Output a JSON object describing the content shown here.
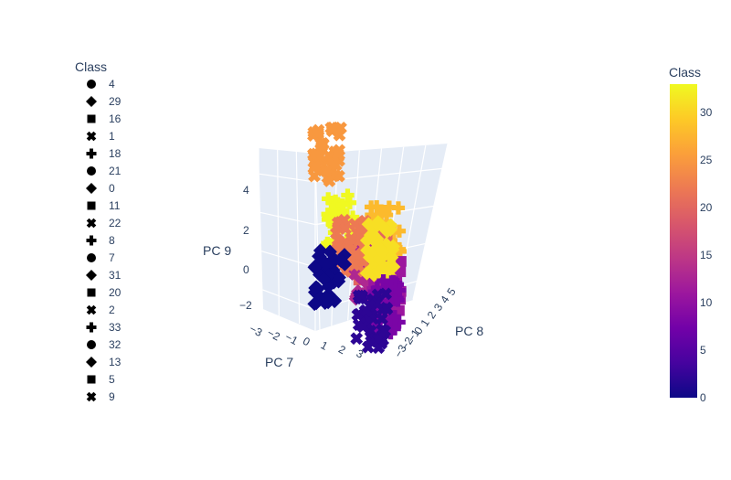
{
  "chart_data": {
    "type": "scatter",
    "projection": "3d",
    "legend": {
      "title": "Class",
      "placement": "top-left",
      "items": [
        {
          "label": "4",
          "symbol": "circle"
        },
        {
          "label": "29",
          "symbol": "diamond"
        },
        {
          "label": "16",
          "symbol": "square"
        },
        {
          "label": "1",
          "symbol": "x"
        },
        {
          "label": "18",
          "symbol": "cross"
        },
        {
          "label": "21",
          "symbol": "circle"
        },
        {
          "label": "0",
          "symbol": "diamond"
        },
        {
          "label": "11",
          "symbol": "square"
        },
        {
          "label": "22",
          "symbol": "x"
        },
        {
          "label": "8",
          "symbol": "cross"
        },
        {
          "label": "7",
          "symbol": "circle"
        },
        {
          "label": "31",
          "symbol": "diamond"
        },
        {
          "label": "20",
          "symbol": "square"
        },
        {
          "label": "2",
          "symbol": "x"
        },
        {
          "label": "33",
          "symbol": "cross"
        },
        {
          "label": "32",
          "symbol": "circle"
        },
        {
          "label": "13",
          "symbol": "diamond"
        },
        {
          "label": "5",
          "symbol": "square"
        },
        {
          "label": "9",
          "symbol": "x"
        }
      ]
    },
    "colorbar": {
      "title": "Class",
      "range": [
        0,
        33
      ],
      "ticks": [
        "0",
        "5",
        "10",
        "15",
        "20",
        "25",
        "30"
      ],
      "colorscale": [
        "#0d0887",
        "#46039f",
        "#7201a8",
        "#9c179e",
        "#bd3786",
        "#d8576b",
        "#ed7953",
        "#fb9f3a",
        "#fdca26",
        "#f0f921"
      ]
    },
    "axes": {
      "x": {
        "title": "PC 7",
        "ticks": [
          "−3",
          "−2",
          "−1",
          "0",
          "1",
          "2",
          "3"
        ]
      },
      "y": {
        "title": "PC 8",
        "ticks": [
          "−3",
          "−2",
          "−1",
          "0",
          "1",
          "2",
          "3",
          "4",
          "5"
        ]
      },
      "z": {
        "title": "PC 9",
        "ticks": [
          "−2",
          "0",
          "2",
          "4"
        ]
      }
    },
    "grid": true,
    "clusters": [
      {
        "class": 33,
        "symbol": "cross",
        "x": -0.5,
        "y": 0.5,
        "z": 2.0
      },
      {
        "class": 31,
        "symbol": "diamond",
        "x": 0.8,
        "y": -0.5,
        "z": 1.5
      },
      {
        "class": 28,
        "symbol": "cross",
        "x": 1.8,
        "y": 1.5,
        "z": 1.8
      },
      {
        "class": 25,
        "symbol": "x",
        "x": 0.2,
        "y": 3.5,
        "z": 4.5
      },
      {
        "class": 22,
        "symbol": "x",
        "x": -0.2,
        "y": 0.0,
        "z": 1.2
      },
      {
        "class": 20,
        "symbol": "square",
        "x": 1.0,
        "y": 0.8,
        "z": 0.8
      },
      {
        "class": 13,
        "symbol": "diamond",
        "x": 0.5,
        "y": 0.2,
        "z": 0.0
      },
      {
        "class": 11,
        "symbol": "square",
        "x": 1.2,
        "y": 0.0,
        "z": -0.5
      },
      {
        "class": 8,
        "symbol": "cross",
        "x": 0.8,
        "y": -1.0,
        "z": -1.2
      },
      {
        "class": 2,
        "symbol": "x",
        "x": 0.0,
        "y": -1.5,
        "z": -2.0
      },
      {
        "class": 0,
        "symbol": "diamond",
        "x": -1.5,
        "y": -1.0,
        "z": -0.5
      }
    ]
  }
}
